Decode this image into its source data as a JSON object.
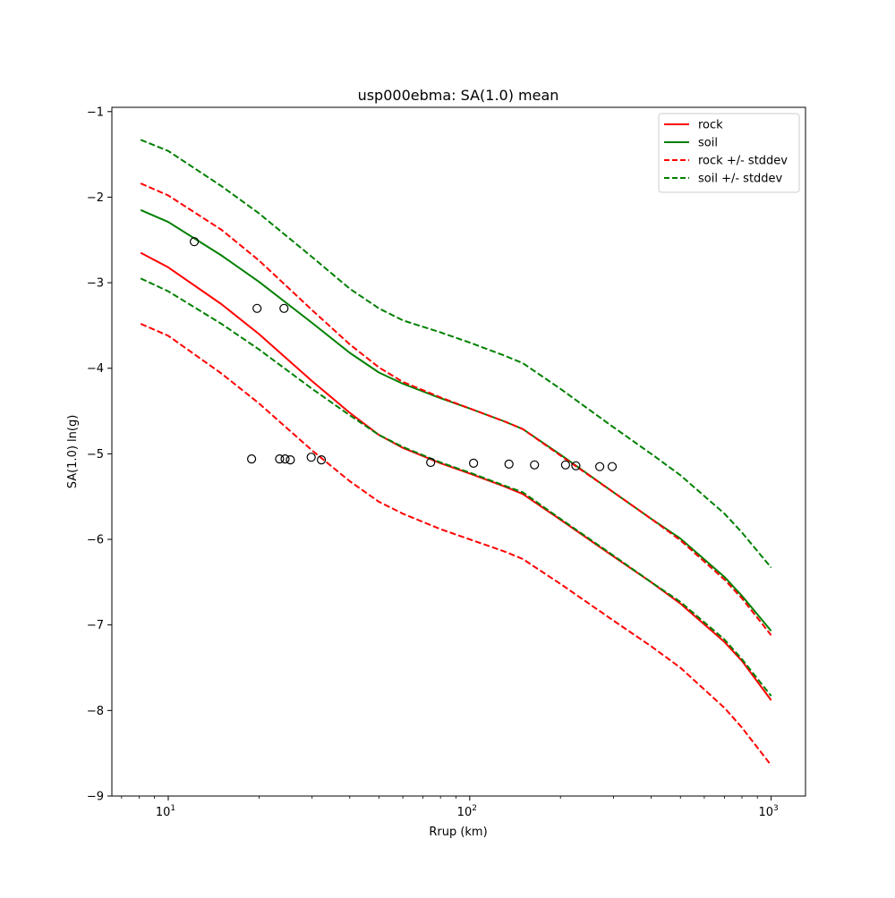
{
  "chart_data": {
    "type": "line",
    "title": "usp000ebma: SA(1.0) mean",
    "xlabel": "Rrup (km)",
    "ylabel": "SA(1.0) ln(g)",
    "xscale": "log",
    "xlim": [
      6.5,
      1300
    ],
    "ylim": [
      -9,
      -0.95
    ],
    "grid": false,
    "legend_position": "top-right",
    "x_ticks": [
      {
        "value": 10,
        "base": "10",
        "exp": "1"
      },
      {
        "value": 100,
        "base": "10",
        "exp": "2"
      },
      {
        "value": 1000,
        "base": "10",
        "exp": "3"
      }
    ],
    "y_ticks": [
      {
        "value": -1,
        "label": "−1"
      },
      {
        "value": -2,
        "label": "−2"
      },
      {
        "value": -3,
        "label": "−3"
      },
      {
        "value": -4,
        "label": "−4"
      },
      {
        "value": -5,
        "label": "−5"
      },
      {
        "value": -6,
        "label": "−6"
      },
      {
        "value": -7,
        "label": "−7"
      },
      {
        "value": -8,
        "label": "−8"
      },
      {
        "value": -9,
        "label": "−9"
      }
    ],
    "x": [
      8.1,
      10,
      15,
      20,
      30,
      40,
      50,
      60,
      80,
      100,
      130,
      150,
      200,
      300,
      400,
      500,
      700,
      800,
      1000
    ],
    "series": [
      {
        "name": "rock",
        "color": "#ff0000",
        "style": "solid",
        "values": [
          -2.65,
          -2.82,
          -3.25,
          -3.6,
          -4.15,
          -4.52,
          -4.78,
          -4.93,
          -5.11,
          -5.23,
          -5.38,
          -5.47,
          -5.77,
          -6.2,
          -6.5,
          -6.75,
          -7.2,
          -7.42,
          -7.88
        ]
      },
      {
        "name": "soil",
        "color": "#008000",
        "style": "solid",
        "values": [
          -2.15,
          -2.29,
          -2.68,
          -2.99,
          -3.47,
          -3.82,
          -4.05,
          -4.18,
          -4.35,
          -4.47,
          -4.62,
          -4.71,
          -5.01,
          -5.45,
          -5.76,
          -5.99,
          -6.44,
          -6.66,
          -7.07
        ]
      },
      {
        "name": "rock +/- stddev",
        "color": "#ff0000",
        "style": "dashed",
        "values": [
          -1.84,
          -1.98,
          -2.38,
          -2.74,
          -3.32,
          -3.72,
          -3.99,
          -4.16,
          -4.34,
          -4.47,
          -4.62,
          -4.71,
          -5.02,
          -5.45,
          -5.76,
          -6.01,
          -6.47,
          -6.69,
          -7.12
        ]
      },
      {
        "name": "",
        "color": "#ff0000",
        "style": "dashed",
        "values": [
          -3.48,
          -3.62,
          -4.06,
          -4.41,
          -4.96,
          -5.32,
          -5.56,
          -5.7,
          -5.88,
          -6.0,
          -6.14,
          -6.23,
          -6.52,
          -6.95,
          -7.25,
          -7.5,
          -7.97,
          -8.2,
          -8.64
        ]
      },
      {
        "name": "soil +/- stddev",
        "color": "#008000",
        "style": "dashed",
        "values": [
          -1.33,
          -1.46,
          -1.87,
          -2.19,
          -2.7,
          -3.07,
          -3.3,
          -3.44,
          -3.58,
          -3.7,
          -3.85,
          -3.94,
          -4.24,
          -4.69,
          -5.0,
          -5.25,
          -5.7,
          -5.92,
          -6.33
        ]
      },
      {
        "name": "",
        "color": "#008000",
        "style": "dashed",
        "values": [
          -2.95,
          -3.1,
          -3.48,
          -3.78,
          -4.24,
          -4.55,
          -4.78,
          -4.92,
          -5.1,
          -5.22,
          -5.37,
          -5.45,
          -5.76,
          -6.19,
          -6.5,
          -6.73,
          -7.17,
          -7.4,
          -7.83
        ]
      }
    ],
    "observations": {
      "x": [
        12.2,
        19.7,
        24.2,
        29.8,
        18.9,
        23.4,
        24.4,
        25.4,
        32.2,
        74.2,
        103,
        135,
        164,
        208,
        225,
        270,
        297
      ],
      "y": [
        -2.52,
        -3.3,
        -3.3,
        -5.04,
        -5.06,
        -5.06,
        -5.06,
        -5.07,
        -5.07,
        -5.1,
        -5.11,
        -5.12,
        -5.13,
        -5.13,
        -5.14,
        -5.15,
        -5.15
      ],
      "marker": "open-circle"
    },
    "legend": [
      {
        "label": "rock",
        "color": "#ff0000",
        "style": "solid"
      },
      {
        "label": "soil",
        "color": "#008000",
        "style": "solid"
      },
      {
        "label": "rock +/- stddev",
        "color": "#ff0000",
        "style": "dashed"
      },
      {
        "label": "soil +/- stddev",
        "color": "#008000",
        "style": "dashed"
      }
    ]
  }
}
